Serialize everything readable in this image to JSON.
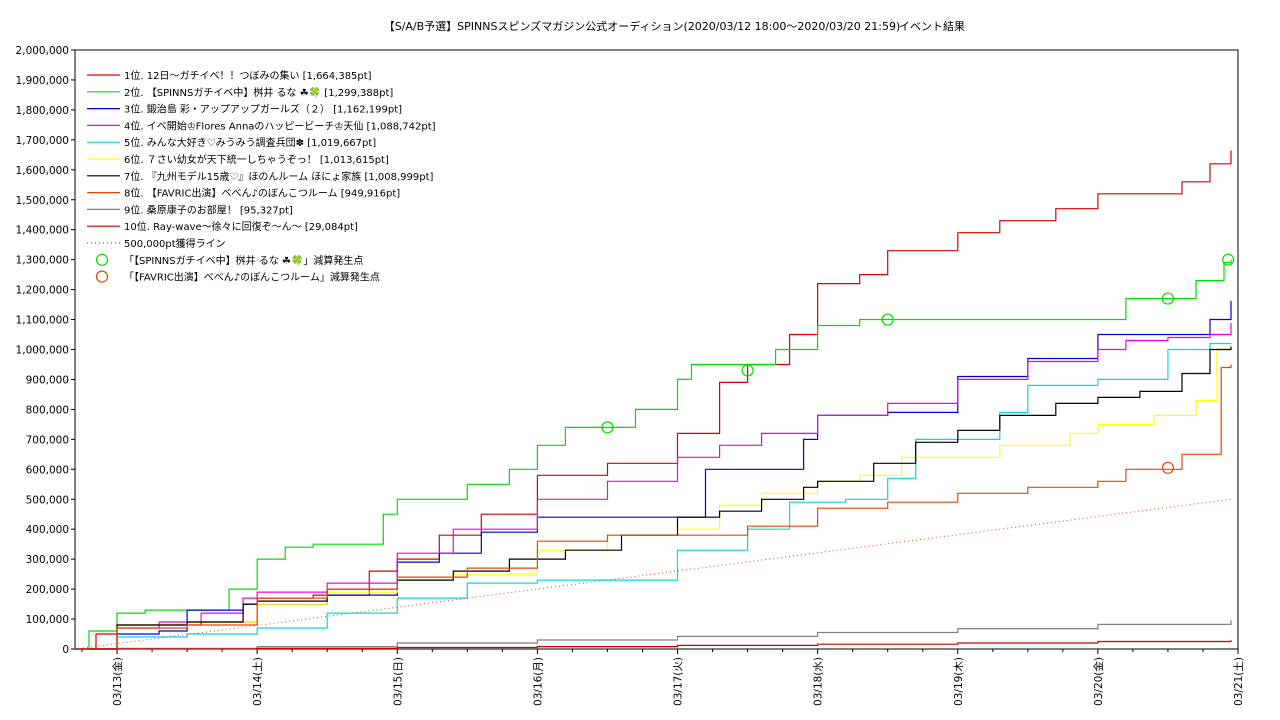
{
  "chart_data": {
    "type": "line",
    "title": "【S/A/B予選】SPINNSスピンズマガジン公式オーディション(2020/03/12 18:00～2020/03/20 21:59)",
    "subtitle": "イベント結果",
    "ylim": [
      0,
      2000000
    ],
    "xlim": [
      -0.3,
      8.0
    ],
    "yticks": [
      0,
      100000,
      200000,
      300000,
      400000,
      500000,
      600000,
      700000,
      800000,
      900000,
      1000000,
      1100000,
      1200000,
      1300000,
      1400000,
      1500000,
      1600000,
      1700000,
      1800000,
      1900000,
      2000000
    ],
    "ytick_labels": [
      "0",
      "100,000",
      "200,000",
      "300,000",
      "400,000",
      "500,000",
      "600,000",
      "700,000",
      "800,000",
      "900,000",
      "1,000,000",
      "1,100,000",
      "1,200,000",
      "1,300,000",
      "1,400,000",
      "1,500,000",
      "1,600,000",
      "1,700,000",
      "1,800,000",
      "1,900,000",
      "2,000,000"
    ],
    "xticks": [
      0,
      1,
      2,
      3,
      4,
      5,
      6,
      7,
      8
    ],
    "xtick_labels": [
      "03/13(金)",
      "03/14(土)",
      "03/15(日)",
      "03/16(月)",
      "03/17(火)",
      "03/18(水)",
      "03/19(木)",
      "03/20(金)",
      "03/21(土)"
    ],
    "grid": true,
    "legend_position": "top-left",
    "series": [
      {
        "name": "1位. 12日～ガチイベ！！つぼみの集い [1,664,385pt]",
        "color": "#dd0000",
        "x": [
          -0.3,
          -0.15,
          0.0,
          0.3,
          0.6,
          1.0,
          1.4,
          1.8,
          2.0,
          2.3,
          2.6,
          3.0,
          3.5,
          4.0,
          4.3,
          4.5,
          4.8,
          5.0,
          5.3,
          5.5,
          5.7,
          6.0,
          6.3,
          6.7,
          7.0,
          7.3,
          7.6,
          7.8,
          7.95
        ],
        "y": [
          0,
          50000,
          80000,
          80000,
          90000,
          170000,
          180000,
          260000,
          300000,
          380000,
          450000,
          580000,
          620000,
          720000,
          890000,
          950000,
          1050000,
          1220000,
          1250000,
          1330000,
          1330000,
          1390000,
          1430000,
          1470000,
          1520000,
          1520000,
          1560000,
          1620000,
          1664385
        ]
      },
      {
        "name": "2位. 【SPINNSガチイベ中】桝井 るな ☘🍀 [1,299,388pt]",
        "color": "#00dd00",
        "x": [
          -0.3,
          -0.2,
          0.0,
          0.2,
          0.6,
          0.8,
          1.0,
          1.2,
          1.4,
          1.7,
          1.9,
          2.0,
          2.5,
          2.8,
          3.0,
          3.2,
          3.5,
          3.7,
          4.0,
          4.1,
          4.5,
          4.7,
          5.0,
          5.3,
          5.5,
          6.0,
          6.5,
          7.0,
          7.2,
          7.5,
          7.7,
          7.9,
          7.95
        ],
        "y": [
          0,
          60000,
          120000,
          130000,
          130000,
          200000,
          300000,
          340000,
          350000,
          350000,
          450000,
          500000,
          550000,
          600000,
          680000,
          740000,
          740000,
          800000,
          900000,
          950000,
          950000,
          1000000,
          1080000,
          1100000,
          1100000,
          1100000,
          1100000,
          1100000,
          1170000,
          1170000,
          1230000,
          1290000,
          1299388
        ]
      },
      {
        "name": "3位. 鍛治島 彩・アップアップガールズ（２） [1,162,199pt]",
        "color": "#0000dd",
        "x": [
          -0.2,
          0.0,
          0.3,
          0.5,
          0.9,
          1.0,
          1.5,
          2.0,
          2.3,
          2.6,
          3.0,
          3.4,
          3.8,
          4.0,
          4.2,
          4.6,
          4.9,
          5.0,
          5.3,
          5.5,
          6.0,
          6.5,
          7.0,
          7.3,
          7.5,
          7.8,
          7.95
        ],
        "y": [
          0,
          50000,
          60000,
          130000,
          150000,
          150000,
          180000,
          290000,
          320000,
          390000,
          440000,
          440000,
          440000,
          440000,
          600000,
          600000,
          700000,
          780000,
          780000,
          790000,
          910000,
          970000,
          1050000,
          1050000,
          1050000,
          1100000,
          1162199
        ]
      },
      {
        "name": "4位. イベ開始♔Flores Annaのハッピービーチ♔天仙 [1,088,742pt]",
        "color": "#ee00ee",
        "x": [
          -0.2,
          0.0,
          0.3,
          0.6,
          0.9,
          1.0,
          1.5,
          2.0,
          2.4,
          3.0,
          3.5,
          4.0,
          4.3,
          4.6,
          5.0,
          5.5,
          6.0,
          6.5,
          7.0,
          7.2,
          7.5,
          7.8,
          7.95
        ],
        "y": [
          0,
          70000,
          90000,
          120000,
          170000,
          190000,
          220000,
          320000,
          400000,
          500000,
          560000,
          640000,
          680000,
          720000,
          780000,
          820000,
          900000,
          960000,
          1000000,
          1030000,
          1040000,
          1050000,
          1088742
        ]
      },
      {
        "name": "5位. みんな大好き♡みうみう調査兵団✽ [1,019,667pt]",
        "color": "#00dddd",
        "x": [
          -0.2,
          0.0,
          0.5,
          1.0,
          1.5,
          2.0,
          2.5,
          3.0,
          3.5,
          3.9,
          4.0,
          4.3,
          4.5,
          4.8,
          5.0,
          5.2,
          5.5,
          5.7,
          6.0,
          6.3,
          6.5,
          7.0,
          7.3,
          7.5,
          7.8,
          7.95
        ],
        "y": [
          0,
          40000,
          50000,
          70000,
          120000,
          170000,
          220000,
          230000,
          230000,
          230000,
          330000,
          330000,
          400000,
          490000,
          490000,
          500000,
          570000,
          700000,
          700000,
          790000,
          880000,
          900000,
          900000,
          1000000,
          1020000,
          1019667
        ]
      },
      {
        "name": "6位. ７さい幼女が天下統一しちゃうぞっ！ [1,013,615pt]",
        "color": "#ffff00",
        "x": [
          -0.2,
          0.0,
          0.5,
          1.0,
          1.5,
          2.0,
          2.4,
          3.0,
          3.5,
          4.0,
          4.3,
          4.6,
          5.0,
          5.3,
          5.6,
          6.0,
          6.3,
          6.8,
          7.0,
          7.4,
          7.7,
          7.85,
          7.95
        ],
        "y": [
          0,
          80000,
          90000,
          150000,
          190000,
          230000,
          250000,
          330000,
          380000,
          400000,
          480000,
          520000,
          560000,
          580000,
          640000,
          640000,
          680000,
          720000,
          750000,
          780000,
          830000,
          1000000,
          1013615
        ]
      },
      {
        "name": "7位. 『九州モデル15歳♡』ほのんルーム ほにょ家族 [1,008,999pt]",
        "color": "#000000",
        "x": [
          -0.2,
          0.0,
          0.5,
          0.9,
          1.0,
          1.5,
          2.0,
          2.4,
          2.8,
          3.2,
          3.6,
          4.0,
          4.3,
          4.6,
          4.9,
          5.0,
          5.4,
          5.7,
          6.0,
          6.3,
          6.7,
          7.0,
          7.3,
          7.6,
          7.8,
          7.95
        ],
        "y": [
          0,
          80000,
          90000,
          150000,
          160000,
          200000,
          230000,
          260000,
          300000,
          330000,
          380000,
          440000,
          460000,
          500000,
          540000,
          560000,
          620000,
          690000,
          730000,
          780000,
          820000,
          840000,
          860000,
          920000,
          1000000,
          1008999
        ]
      },
      {
        "name": "8位. 【FAVRIC出演】べべん♪のぼんこつルーム [949,916pt]",
        "color": "#ee4400",
        "x": [
          -0.2,
          0.0,
          0.5,
          1.0,
          1.5,
          2.0,
          2.5,
          3.0,
          3.5,
          4.0,
          4.5,
          5.0,
          5.5,
          6.0,
          6.5,
          7.0,
          7.2,
          7.45,
          7.6,
          7.83,
          7.88,
          7.95
        ],
        "y": [
          0,
          70000,
          80000,
          170000,
          200000,
          240000,
          270000,
          360000,
          380000,
          380000,
          410000,
          470000,
          490000,
          520000,
          540000,
          560000,
          600000,
          600000,
          650000,
          650000,
          940000,
          949916
        ]
      },
      {
        "name": "9位. 桑原康子のお部屋！ [95,327pt]",
        "color": "#808080",
        "x": [
          -0.3,
          0.0,
          1.0,
          2.0,
          3.0,
          4.0,
          5.0,
          6.0,
          7.0,
          7.95
        ],
        "y": [
          0,
          2000,
          8000,
          20000,
          30000,
          42000,
          55000,
          68000,
          82000,
          95327
        ]
      },
      {
        "name": "10位. Ray-wave～徐々に回復ぞ～ん～ [29,084pt]",
        "color": "#cc0000",
        "x": [
          -0.3,
          1.0,
          2.0,
          3.0,
          4.0,
          5.0,
          6.0,
          7.0,
          7.95
        ],
        "y": [
          0,
          2000,
          5000,
          8000,
          12000,
          16000,
          20000,
          25000,
          29084
        ]
      },
      {
        "name": "500,000pt獲得ライン",
        "color": "#cc4444",
        "dashed": true,
        "x": [
          -0.3,
          7.95
        ],
        "y": [
          0,
          500000
        ]
      }
    ],
    "markers": [
      {
        "name": "「【SPINNSガチイベ中】桝井 るな ☘🍀」減算発生点",
        "color": "#00dd00",
        "x": [
          3.5,
          4.5,
          5.5,
          7.5,
          7.93
        ],
        "y": [
          740000,
          930000,
          1100000,
          1170000,
          1300000
        ]
      },
      {
        "name": "「【FAVRIC出演】べべん♪のぼんこつルーム」減算発生点",
        "color": "#ee4400",
        "x": [
          7.5
        ],
        "y": [
          605000
        ]
      }
    ]
  }
}
